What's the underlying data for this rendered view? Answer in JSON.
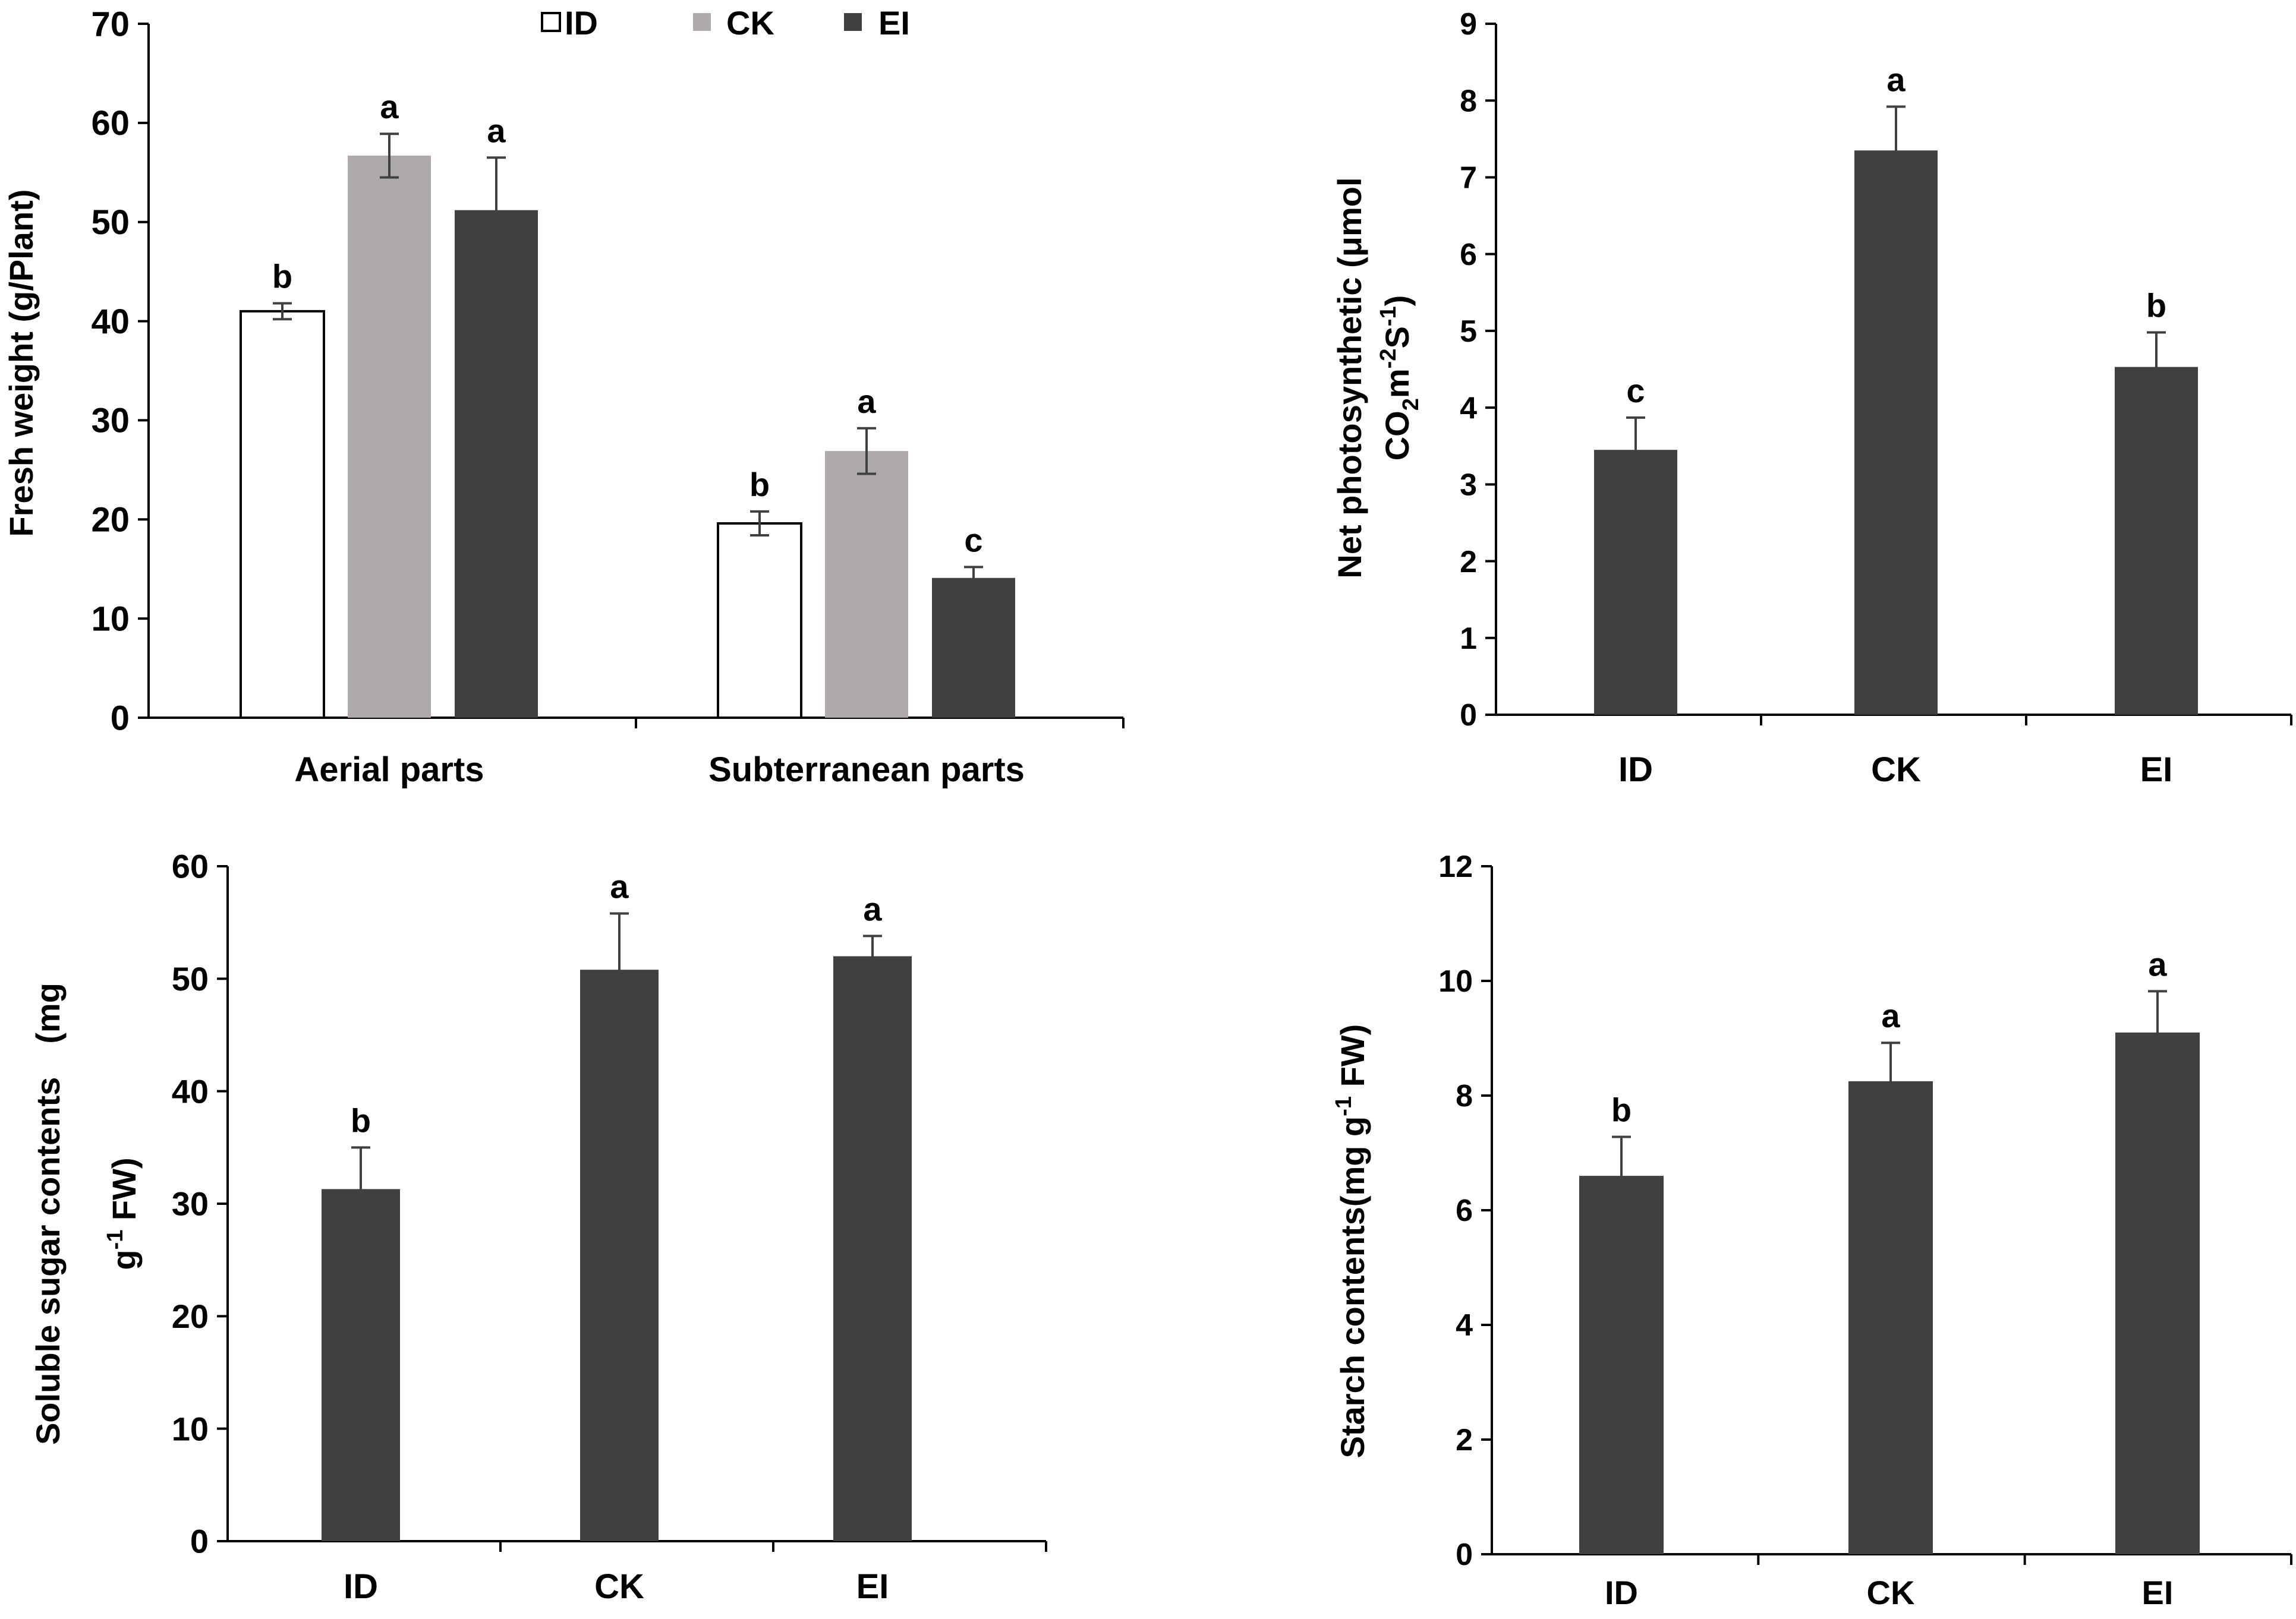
{
  "figure": {
    "colors": {
      "ID": "#ffffff",
      "CK": "#aeaaaa",
      "EI": "#404040",
      "axis": "#000000",
      "error_bar": "#404040"
    }
  },
  "chart_data": [
    {
      "id": "fresh-weight",
      "type": "bar",
      "title": "",
      "xlabel": "",
      "ylabel": "Fresh weight (g/Plant)",
      "ylim": [
        0,
        70
      ],
      "yticks": [
        0,
        10,
        20,
        30,
        40,
        50,
        60,
        70
      ],
      "categories": [
        "Aerial parts",
        "Subterranean parts"
      ],
      "legend": {
        "position": "top",
        "entries": [
          "ID",
          "CK",
          "EI"
        ]
      },
      "series": [
        {
          "name": "ID",
          "color": "#ffffff",
          "values": [
            41,
            19.6
          ],
          "errors": [
            0.8,
            1.2
          ],
          "letters": [
            "b",
            "b"
          ]
        },
        {
          "name": "CK",
          "color": "#aeaaaa",
          "values": [
            56.7,
            26.9
          ],
          "errors": [
            2.2,
            2.3
          ],
          "letters": [
            "a",
            "a"
          ]
        },
        {
          "name": "EI",
          "color": "#404040",
          "values": [
            51.2,
            14.1
          ],
          "errors": [
            5.3,
            1.1
          ],
          "letters": [
            "a",
            "c"
          ]
        }
      ]
    },
    {
      "id": "net-photosynthetic",
      "type": "bar",
      "title": "",
      "xlabel": "",
      "ylabel_line1": "Net photosynthetic (μmol",
      "ylabel_line2": {
        "a": "CO",
        "b": "2",
        "c": "m",
        "d": "-2",
        "e": "S",
        "f": "-1",
        "g": ")"
      },
      "ylim": [
        0,
        9
      ],
      "yticks": [
        0,
        1,
        2,
        3,
        4,
        5,
        6,
        7,
        8,
        9
      ],
      "categories": [
        "ID",
        "CK",
        "EI"
      ],
      "series": [
        {
          "name": "Net photosynthetic",
          "color": "#404040",
          "values": [
            3.45,
            7.35,
            4.53
          ],
          "errors": [
            0.42,
            0.57,
            0.45
          ],
          "letters": [
            "c",
            "a",
            "b"
          ]
        }
      ]
    },
    {
      "id": "soluble-sugar",
      "type": "bar",
      "title": "",
      "xlabel": "",
      "ylabel_line1": "Soluble sugar contents　(mg",
      "ylabel_line2": {
        "a": "g",
        "b": "-1",
        "c": " FW)"
      },
      "ylim": [
        0,
        60
      ],
      "yticks": [
        0,
        10,
        20,
        30,
        40,
        50,
        60
      ],
      "categories": [
        "ID",
        "CK",
        "EI"
      ],
      "series": [
        {
          "name": "Soluble sugar contents",
          "color": "#404040",
          "values": [
            31.3,
            50.8,
            52.0
          ],
          "errors": [
            3.7,
            5.0,
            1.8
          ],
          "letters": [
            "b",
            "a",
            "a"
          ]
        }
      ]
    },
    {
      "id": "starch",
      "type": "bar",
      "title": "",
      "xlabel": "",
      "ylabel": {
        "a": "Starch contents(mg g",
        "b": "-1",
        "c": " FW)"
      },
      "ylim": [
        0,
        12
      ],
      "yticks": [
        0,
        2,
        4,
        6,
        8,
        10,
        12
      ],
      "categories": [
        "ID",
        "CK",
        "EI"
      ],
      "series": [
        {
          "name": "Starch contents",
          "color": "#404040",
          "values": [
            6.6,
            8.25,
            9.1
          ],
          "errors": [
            0.68,
            0.67,
            0.72
          ],
          "letters": [
            "b",
            "a",
            "a"
          ]
        }
      ]
    }
  ]
}
